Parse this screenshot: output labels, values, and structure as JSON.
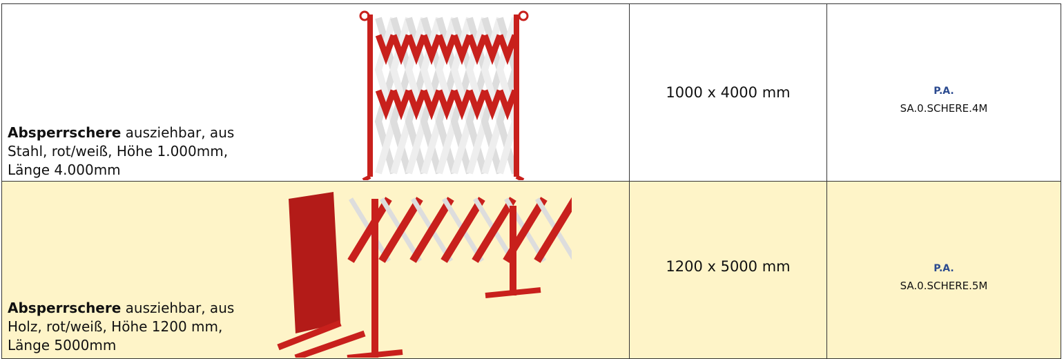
{
  "table": {
    "rows": [
      {
        "description": {
          "bold": "Absperrschere",
          "text": "ausziehbar, aus Stahl, rot/weiß, Höhe 1.000mm, Länge 4.000mm"
        },
        "size": "1000 x 4000 mm",
        "label": "P.A.",
        "code": "SA.0.SCHERE.4M"
      },
      {
        "description": {
          "bold": "Absperrschere",
          "text": "ausziehbar, aus Holz, rot/weiß, Höhe 1200 mm, Länge 5000mm"
        },
        "size": "1200 x 5000 mm",
        "label": "P.A.",
        "code": "SA.0.SCHERE.5M"
      }
    ]
  }
}
